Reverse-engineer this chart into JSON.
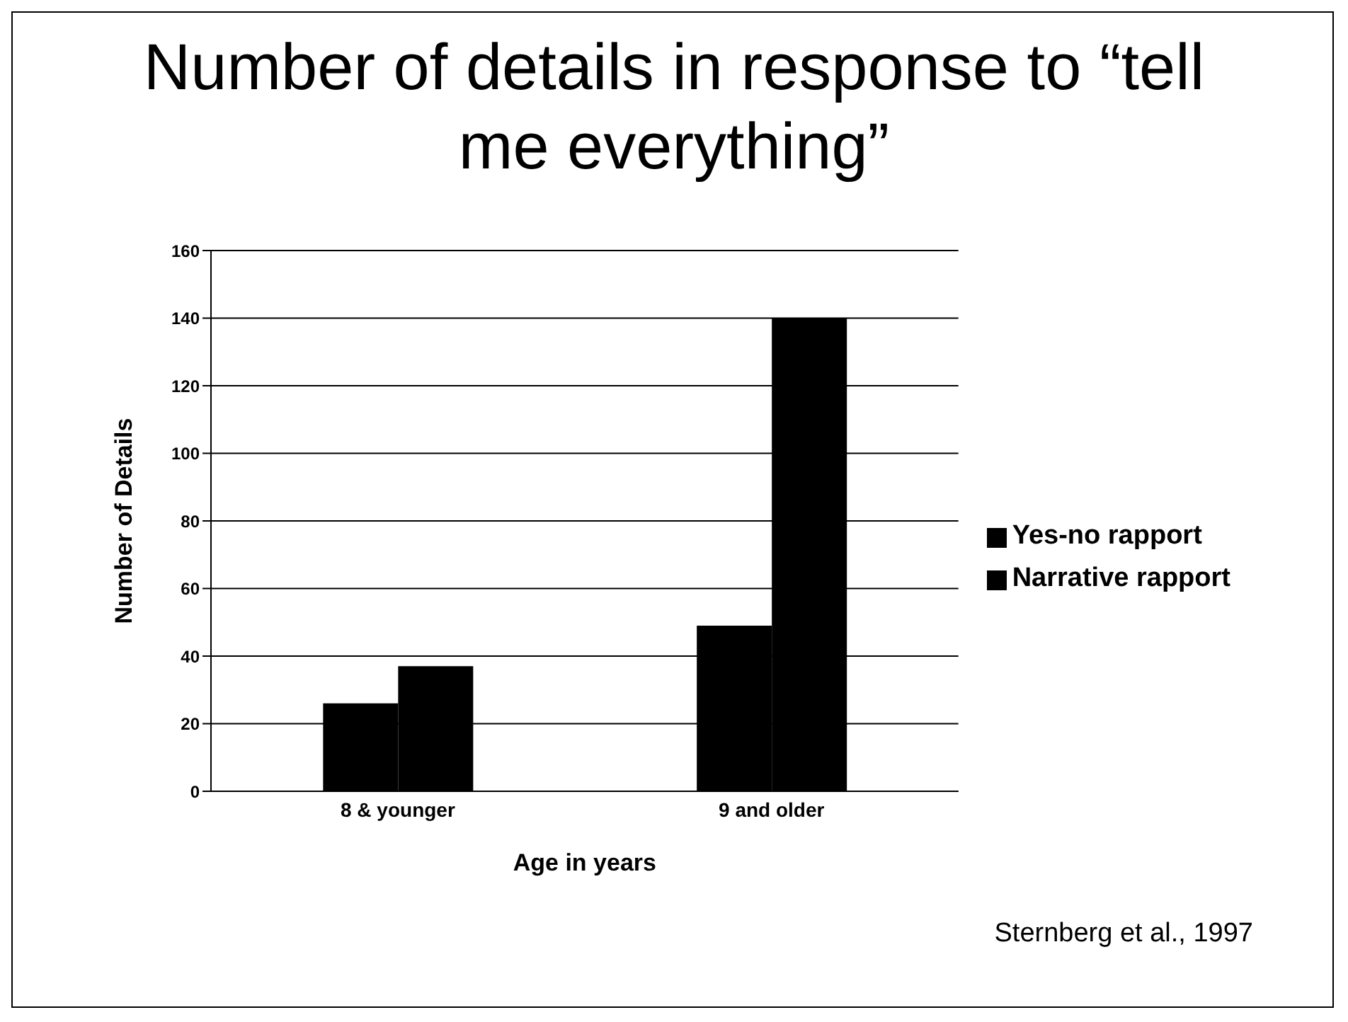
{
  "chart_data": {
    "type": "bar",
    "title": "Number of details in response to “tell me everything”",
    "xlabel": "Age in years",
    "ylabel": "Number of Details",
    "categories": [
      "8 & younger",
      "9 and older"
    ],
    "series": [
      {
        "name": "Yes-no rapport",
        "color": "#000000",
        "values": [
          26,
          49
        ]
      },
      {
        "name": "Narrative rapport",
        "color": "#000000",
        "values": [
          37,
          140
        ]
      }
    ],
    "ylim": [
      0,
      160
    ],
    "yticks": [
      0,
      20,
      40,
      60,
      80,
      100,
      120,
      140,
      160
    ],
    "grid": "y",
    "legend": "right",
    "annotations": [
      "Sternberg et al., 1997"
    ]
  }
}
